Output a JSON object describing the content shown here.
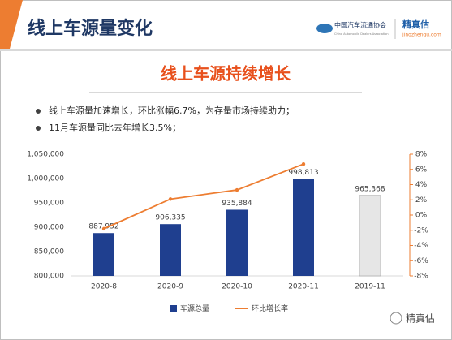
{
  "header": {
    "title": "线上车源量变化",
    "logo_name": "中国汽车流通协会",
    "logo_name_en": "China Automobile Dealers Association",
    "brand": "精真估",
    "brand_url": "jingzhengu.com"
  },
  "subtitle": "线上车源持续增长",
  "bullets": [
    "线上车源量加速增长，环比涨幅6.7%，为存量市场持续助力；",
    "11月车源量同比去年增长3.5%；"
  ],
  "watermark": "精真估",
  "chart_data": {
    "type": "bar_line",
    "categories": [
      "2020-8",
      "2020-9",
      "2020-10",
      "2020-11",
      "2019-11"
    ],
    "series": [
      {
        "name": "车源总量",
        "type": "bar",
        "color": "#1f3f8f",
        "colors": [
          "#1f3f8f",
          "#1f3f8f",
          "#1f3f8f",
          "#1f3f8f",
          "#e6e6e6"
        ],
        "values": [
          887952,
          906335,
          935884,
          998813,
          965368
        ],
        "value_labels": [
          "887,952",
          "906,335",
          "935,884",
          "998,813",
          "965,368"
        ]
      },
      {
        "name": "环比增长率",
        "type": "line",
        "axis": "y2",
        "color": "#ed7d31",
        "values": [
          -1.8,
          2.1,
          3.3,
          6.7,
          null
        ]
      }
    ],
    "ylim": [
      800000,
      1050000
    ],
    "yticks": [
      {
        "value": 800000,
        "label": "800,000"
      },
      {
        "value": 850000,
        "label": "850,000"
      },
      {
        "value": 900000,
        "label": "900,000"
      },
      {
        "value": 950000,
        "label": "950,000"
      },
      {
        "value": 1000000,
        "label": "1,000,000"
      },
      {
        "value": 1050000,
        "label": "1,050,000"
      }
    ],
    "y2lim": [
      -8,
      8
    ],
    "y2ticks": [
      {
        "value": -8,
        "label": "-8%"
      },
      {
        "value": -6,
        "label": "-6%"
      },
      {
        "value": -4,
        "label": "-4%"
      },
      {
        "value": -2,
        "label": "-2%"
      },
      {
        "value": 0,
        "label": "0%"
      },
      {
        "value": 2,
        "label": "2%"
      },
      {
        "value": 4,
        "label": "4%"
      },
      {
        "value": 6,
        "label": "6%"
      },
      {
        "value": 8,
        "label": "8%"
      }
    ],
    "legend": "bottom"
  }
}
